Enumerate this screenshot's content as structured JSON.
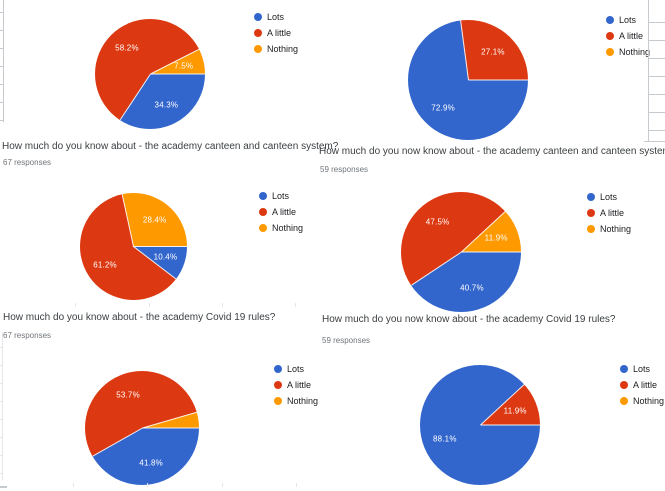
{
  "page": {
    "background": "#ffffff"
  },
  "palette": {
    "lots_blue": "#3366cc",
    "a_little_red": "#dc3912",
    "nothing_orange": "#ff9900",
    "slice_label_color": "#ffffff",
    "title_color": "#3c4043",
    "responses_color": "#70757a"
  },
  "chart_data": [
    {
      "type": "pie",
      "title": "How much do you know about - the academy canteen and canteen system?",
      "responses": "67 responses",
      "categories": [
        "Lots",
        "A little",
        "Nothing"
      ],
      "values": [
        34.3,
        58.2,
        7.5
      ],
      "labels": [
        "34.3%",
        "58.2%",
        "7.5%"
      ],
      "colors": [
        "#3366cc",
        "#dc3912",
        "#ff9900"
      ],
      "legend_position": "right",
      "start_angle": "3-oclock",
      "direction": "clockwise"
    },
    {
      "type": "pie",
      "title": "How much do you now know about - the academy canteen and canteen system",
      "responses": "59 responses",
      "categories": [
        "Lots",
        "A little",
        "Nothing"
      ],
      "values": [
        72.9,
        27.1,
        0
      ],
      "labels": [
        "72.9%",
        "27.1%",
        null
      ],
      "colors": [
        "#3366cc",
        "#dc3912",
        "#ff9900"
      ],
      "legend_position": "right",
      "start_angle": "3-oclock",
      "direction": "clockwise"
    },
    {
      "type": "pie",
      "title": "How much do you know about - the academy Covid 19 rules?",
      "responses": "67 responses",
      "categories": [
        "Lots",
        "A little",
        "Nothing"
      ],
      "values": [
        10.4,
        61.2,
        28.4
      ],
      "labels": [
        "10.4%",
        "61.2%",
        "28.4%"
      ],
      "colors": [
        "#3366cc",
        "#dc3912",
        "#ff9900"
      ],
      "legend_position": "right",
      "start_angle": "3-oclock",
      "direction": "clockwise"
    },
    {
      "type": "pie",
      "title": "How much do you now know about - the academy Covid 19 rules?",
      "responses": "59 responses",
      "categories": [
        "Lots",
        "A little",
        "Nothing"
      ],
      "values": [
        40.7,
        47.5,
        11.9
      ],
      "labels": [
        "40.7%",
        "47.5%",
        "11.9%"
      ],
      "colors": [
        "#3366cc",
        "#dc3912",
        "#ff9900"
      ],
      "legend_position": "right",
      "start_angle": "3-oclock",
      "direction": "clockwise"
    },
    {
      "type": "pie",
      "categories": [
        "Lots",
        "A little",
        "Nothing"
      ],
      "values": [
        41.8,
        53.7,
        4.5
      ],
      "labels": [
        "41.8%",
        "53.7%",
        null
      ],
      "colors": [
        "#3366cc",
        "#dc3912",
        "#ff9900"
      ],
      "legend_position": "right",
      "start_angle": "3-oclock",
      "direction": "clockwise"
    },
    {
      "type": "pie",
      "categories": [
        "Lots",
        "A little",
        "Nothing"
      ],
      "values": [
        88.1,
        11.9,
        0
      ],
      "labels": [
        "88.1%",
        "11.9%",
        null
      ],
      "colors": [
        "#3366cc",
        "#dc3912",
        "#ff9900"
      ],
      "legend_position": "right",
      "start_angle": "3-oclock",
      "direction": "clockwise"
    }
  ]
}
